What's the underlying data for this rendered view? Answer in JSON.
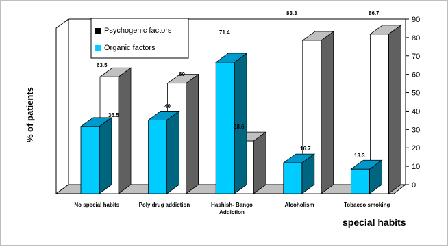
{
  "chart_data": {
    "type": "bar",
    "categories": [
      "No special  habits",
      "Poly drug addiction",
      "Hashish-  Bango Addiction",
      "Alcoholism",
      "Tobacco smoking"
    ],
    "series": [
      {
        "name": "Psychogenic factors",
        "values": [
          63.5,
          60,
          28.6,
          83.3,
          86.7
        ],
        "color": "#ffffff"
      },
      {
        "name": "Organic factors",
        "values": [
          36.5,
          40,
          71.4,
          16.7,
          13.3
        ],
        "color": "#00ccff"
      }
    ],
    "value_labels": {
      "Psychogenic factors": [
        "63.5",
        "60",
        "28.6",
        "83.3",
        "86.7"
      ],
      "Organic factors": [
        "36.5",
        "40",
        "71.4",
        "16.7",
        "13.3"
      ]
    },
    "xlabel": "special habits",
    "ylabel": "% of patients",
    "ylim": [
      0,
      90
    ],
    "yticks": [
      0,
      10,
      20,
      30,
      40,
      50,
      60,
      70,
      80,
      90
    ],
    "legend_placement": "top-left",
    "grid": false,
    "style": "3d-column"
  },
  "colors": {
    "psychogenic_face": "#ffffff",
    "psychogenic_top": "#c0c0c0",
    "psychogenic_side": "#606060",
    "organic_face": "#00ccff",
    "organic_top": "#0099cc",
    "organic_side": "#006680",
    "axis": "#000000"
  }
}
